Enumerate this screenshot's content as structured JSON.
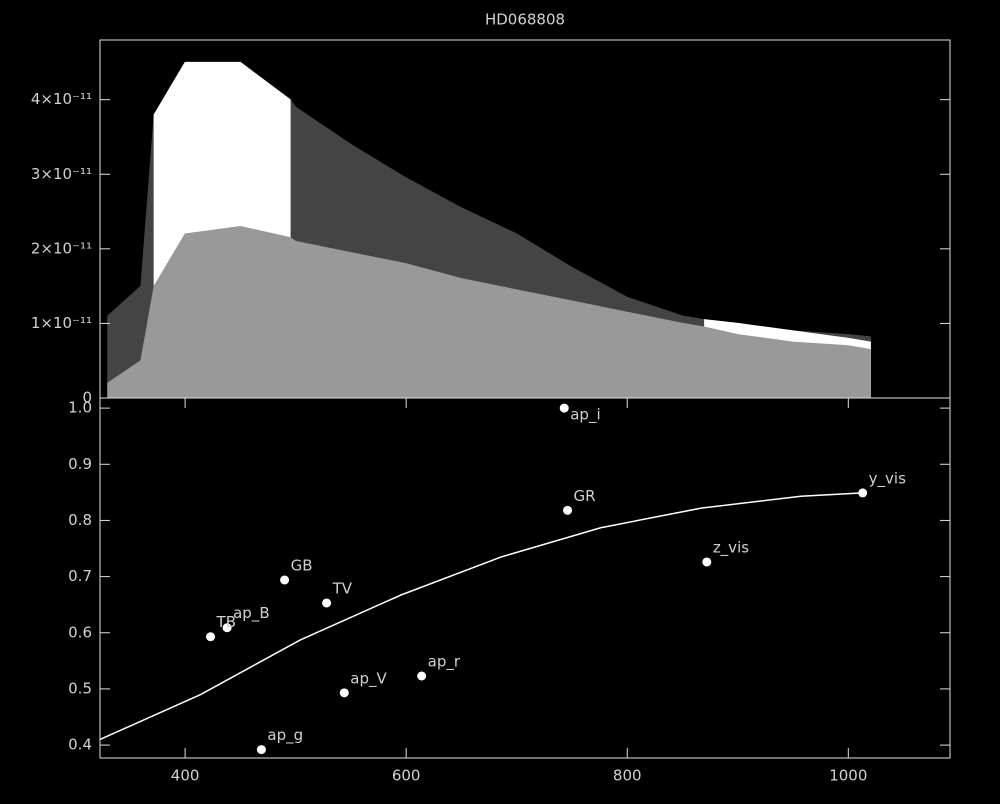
{
  "chart_data": [
    {
      "type": "area",
      "title": "HD068808",
      "x": [
        330,
        360,
        372,
        400,
        450,
        495,
        500,
        550,
        600,
        650,
        700,
        750,
        800,
        850,
        870,
        900,
        950,
        1000,
        1020
      ],
      "series": [
        {
          "color": "#444444",
          "values": [
            1.1e-11,
            1.5e-11,
            3.8e-11,
            4.4e-11,
            4.3e-11,
            4e-11,
            3.9e-11,
            3.4e-11,
            2.95e-11,
            2.55e-11,
            2.2e-11,
            1.75e-11,
            1.35e-11,
            1.1e-11,
            1.05e-11,
            1e-11,
            9e-12,
            8.5e-12,
            8.2e-12
          ]
        },
        {
          "color": "#ffffff",
          "values": [
            null,
            null,
            3.8e-11,
            4.5e-11,
            4.5e-11,
            4e-11,
            null,
            null,
            null,
            null,
            null,
            null,
            null,
            null,
            1.05e-11,
            1e-11,
            9e-12,
            8e-12,
            7.5e-12
          ]
        },
        {
          "color": "#999999",
          "values": [
            2e-12,
            5e-12,
            1.5e-11,
            2.2e-11,
            2.3e-11,
            2.15e-11,
            2.1e-11,
            1.95e-11,
            1.8e-11,
            1.6e-11,
            1.45e-11,
            1.3e-11,
            1.15e-11,
            1e-11,
            9.5e-12,
            8.5e-12,
            7.5e-12,
            7e-12,
            6.5e-12
          ]
        }
      ],
      "xlim": [
        323,
        1092
      ],
      "ylim": [
        0,
        4.8e-11
      ],
      "yticks": [
        0,
        {
          "value": 1e-11,
          "label": "1×10⁻¹¹"
        },
        {
          "value": 2e-11,
          "label": "2×10⁻¹¹"
        },
        {
          "value": 3e-11,
          "label": "3×10⁻¹¹"
        },
        {
          "value": 4e-11,
          "label": "4×10⁻¹¹"
        }
      ]
    },
    {
      "type": "scatter",
      "labels": [
        "ap_i",
        "GR",
        "y_vis",
        "z_vis",
        "GB",
        "TV",
        "ap_B",
        "TB",
        "ap_r",
        "ap_V",
        "ap_g"
      ],
      "x": [
        743,
        746,
        1013,
        872,
        490,
        528,
        438,
        423,
        614,
        544,
        469
      ],
      "values": [
        1.0,
        0.818,
        0.849,
        0.726,
        0.694,
        0.653,
        0.609,
        0.593,
        0.523,
        0.493,
        0.392
      ],
      "color": "#ffffff",
      "curve": {
        "x": [
          323,
          414,
          504,
          595,
          686,
          776,
          867,
          957,
          1013
        ],
        "values": [
          0.41,
          0.49,
          0.587,
          0.667,
          0.735,
          0.787,
          0.822,
          0.843,
          0.849
        ],
        "color": "#ffffff"
      },
      "xlim": [
        323,
        1092
      ],
      "xticks": [
        400,
        600,
        800,
        1000
      ],
      "ylim": [
        0.377,
        1.018
      ],
      "yticks": [
        {
          "value": 0.4,
          "label": "0.4"
        },
        {
          "value": 0.5,
          "label": "0.5"
        },
        {
          "value": 0.6,
          "label": "0.6"
        },
        {
          "value": 0.7,
          "label": "0.7"
        },
        {
          "value": 0.8,
          "label": "0.8"
        },
        {
          "value": 0.9,
          "label": "0.9"
        },
        {
          "value": 1.0,
          "label": "1.0"
        }
      ]
    }
  ]
}
